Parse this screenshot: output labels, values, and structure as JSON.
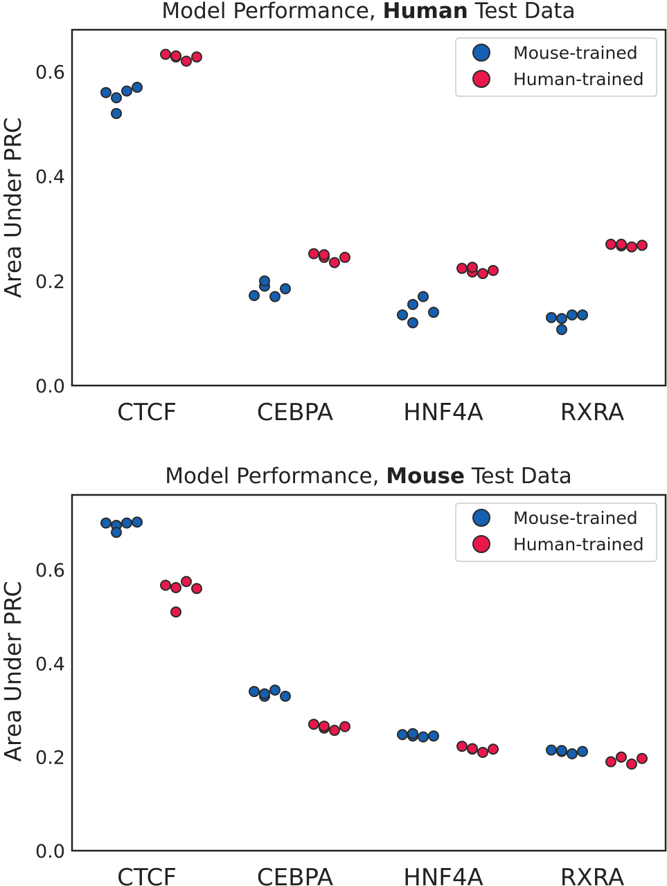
{
  "colors": {
    "mouse_trained": "#1560b0",
    "human_trained": "#e8194a"
  },
  "chart_data": [
    {
      "type": "scatter",
      "title_prefix": "Model Performance, ",
      "title_bold": "Human",
      "title_suffix": " Test Data",
      "ylabel": "Area Under PRC",
      "ylim": [
        0,
        0.68
      ],
      "yticks": [
        0.0,
        0.2,
        0.4,
        0.6
      ],
      "ytick_labels": [
        "0.0",
        "0.2",
        "0.4",
        "0.6"
      ],
      "categories": [
        "CTCF",
        "CEBPA",
        "HNF4A",
        "RXRA"
      ],
      "legend": {
        "placement": "top-right",
        "entries": [
          "Mouse-trained",
          "Human-trained"
        ]
      },
      "grid": false,
      "series": [
        {
          "name": "Mouse-trained",
          "values": [
            [
              0.56,
              0.55,
              0.563,
              0.57,
              0.52
            ],
            [
              0.172,
              0.19,
              0.17,
              0.185,
              0.2
            ],
            [
              0.135,
              0.155,
              0.17,
              0.14,
              0.12
            ],
            [
              0.13,
              0.128,
              0.135,
              0.135,
              0.107
            ]
          ]
        },
        {
          "name": "Human-trained",
          "values": [
            [
              0.633,
              0.628,
              0.62,
              0.628,
              0.63
            ],
            [
              0.252,
              0.245,
              0.235,
              0.245,
              0.25
            ],
            [
              0.224,
              0.217,
              0.214,
              0.22,
              0.226
            ],
            [
              0.27,
              0.267,
              0.265,
              0.268,
              0.27
            ]
          ]
        }
      ]
    },
    {
      "type": "scatter",
      "title_prefix": "Model Performance, ",
      "title_bold": "Mouse",
      "title_suffix": " Test Data",
      "ylabel": "Area Under PRC",
      "ylim": [
        0,
        0.76
      ],
      "yticks": [
        0.0,
        0.2,
        0.4,
        0.6
      ],
      "ytick_labels": [
        "0.0",
        "0.2",
        "0.4",
        "0.6"
      ],
      "categories": [
        "CTCF",
        "CEBPA",
        "HNF4A",
        "RXRA"
      ],
      "legend": {
        "placement": "top-right",
        "entries": [
          "Mouse-trained",
          "Human-trained"
        ]
      },
      "grid": false,
      "series": [
        {
          "name": "Mouse-trained",
          "values": [
            [
              0.7,
              0.695,
              0.7,
              0.702,
              0.68
            ],
            [
              0.34,
              0.33,
              0.343,
              0.33,
              0.335
            ],
            [
              0.248,
              0.245,
              0.243,
              0.245,
              0.25
            ],
            [
              0.215,
              0.212,
              0.207,
              0.212,
              0.214
            ]
          ]
        },
        {
          "name": "Human-trained",
          "values": [
            [
              0.567,
              0.562,
              0.575,
              0.56,
              0.51
            ],
            [
              0.27,
              0.262,
              0.257,
              0.265,
              0.266
            ],
            [
              0.223,
              0.217,
              0.21,
              0.217,
              0.218
            ],
            [
              0.19,
              0.2,
              0.185,
              0.197,
              0.2
            ]
          ]
        }
      ]
    }
  ]
}
